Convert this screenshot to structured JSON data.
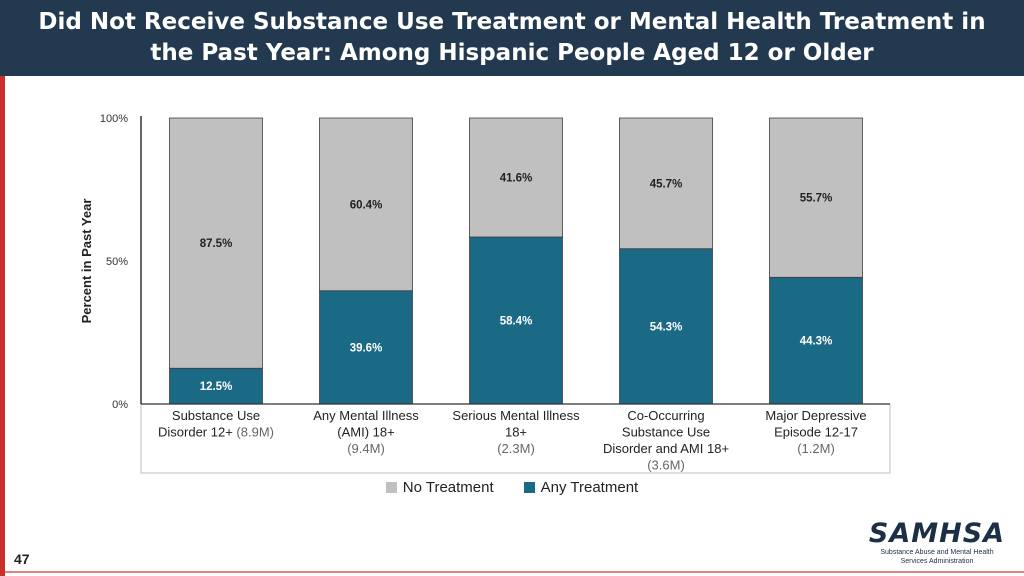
{
  "header": {
    "title_line1": "Did Not Receive Substance Use Treatment or Mental Health Treatment in",
    "title_line2": "the Past Year: Among Hispanic People Aged 12 or Older"
  },
  "colors": {
    "header_bg": "#23394f",
    "no_treatment": "#c0c0c0",
    "any_treatment": "#1a6985",
    "accent_red": "#c9302c"
  },
  "chart_data": {
    "type": "bar",
    "stacked": true,
    "ylabel": "Percent in Past Year",
    "yticks": [
      "0%",
      "50%",
      "100%"
    ],
    "ylim": [
      0,
      100
    ],
    "categories": [
      {
        "label": [
          "Substance Use",
          "Disorder 12+"
        ],
        "count": "(8.9M)"
      },
      {
        "label": [
          "Any Mental Illness",
          "(AMI) 18+"
        ],
        "count": "(9.4M)"
      },
      {
        "label": [
          "Serious Mental Illness",
          "18+"
        ],
        "count": "(2.3M)"
      },
      {
        "label": [
          "Co-Occurring",
          "Substance Use",
          "Disorder and AMI 18+"
        ],
        "count": "(3.6M)"
      },
      {
        "label": [
          "Major Depressive",
          "Episode 12-17"
        ],
        "count": "(1.2M)"
      }
    ],
    "series": [
      {
        "name": "Any Treatment",
        "values": [
          12.5,
          39.6,
          58.4,
          54.3,
          44.3
        ],
        "labels": [
          "12.5%",
          "39.6%",
          "58.4%",
          "54.3%",
          "44.3%"
        ]
      },
      {
        "name": "No Treatment",
        "values": [
          87.5,
          60.4,
          41.6,
          45.7,
          55.7
        ],
        "labels": [
          "87.5%",
          "60.4%",
          "41.6%",
          "45.7%",
          "55.7%"
        ]
      }
    ],
    "legend": {
      "position": "bottom",
      "order": [
        "No Treatment",
        "Any Treatment"
      ]
    }
  },
  "footer": {
    "page_number": "47",
    "logo_text": "SAMHSA",
    "logo_subtitle_line1": "Substance Abuse and Mental Health",
    "logo_subtitle_line2": "Services Administration"
  }
}
